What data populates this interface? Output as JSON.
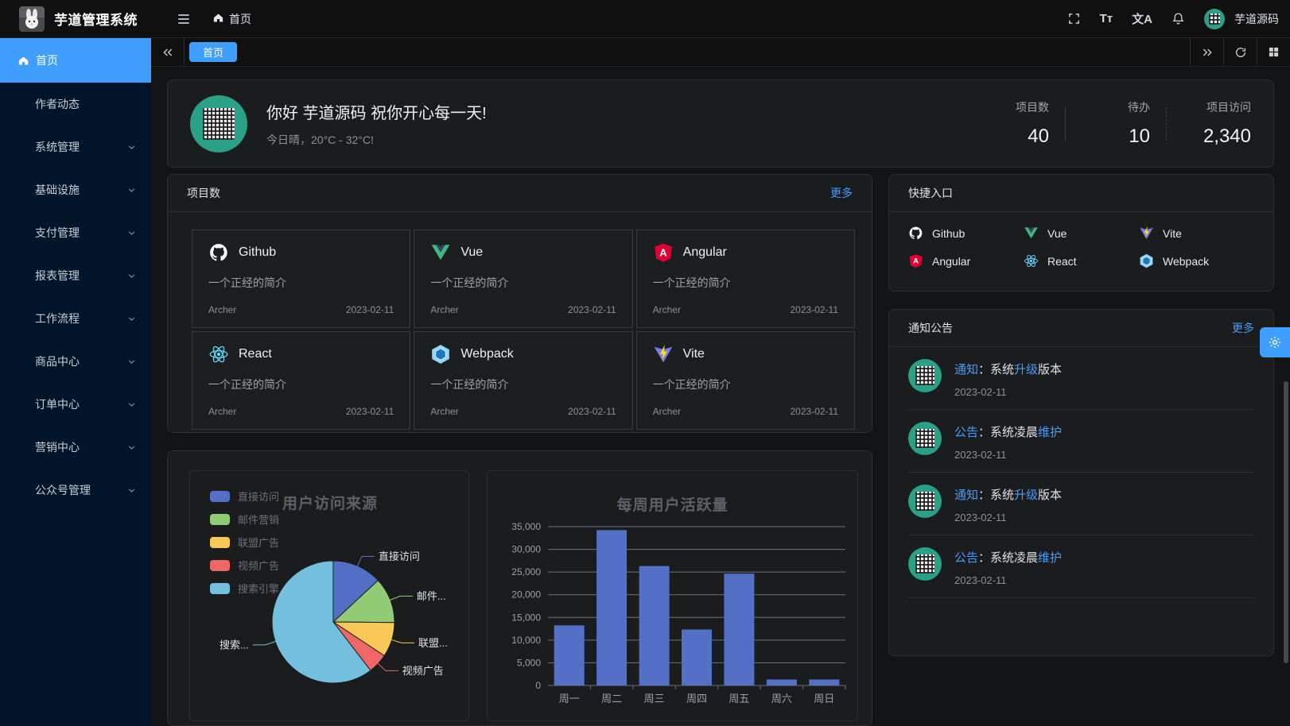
{
  "header": {
    "app_title": "芋道管理系统",
    "breadcrumb_home": "首页",
    "username": "芋道源码",
    "icons": [
      "fullscreen-icon",
      "font-size-icon",
      "locale-icon",
      "bell-icon"
    ]
  },
  "tabbar": {
    "active_tab": "首页"
  },
  "sidebar": {
    "items": [
      {
        "label": "首页",
        "active": true,
        "icon": "home-icon",
        "expandable": false
      },
      {
        "label": "作者动态",
        "active": false,
        "expandable": false
      },
      {
        "label": "系统管理",
        "active": false,
        "expandable": true
      },
      {
        "label": "基础设施",
        "active": false,
        "expandable": true
      },
      {
        "label": "支付管理",
        "active": false,
        "expandable": true
      },
      {
        "label": "报表管理",
        "active": false,
        "expandable": true
      },
      {
        "label": "工作流程",
        "active": false,
        "expandable": true
      },
      {
        "label": "商品中心",
        "active": false,
        "expandable": true
      },
      {
        "label": "订单中心",
        "active": false,
        "expandable": true
      },
      {
        "label": "营销中心",
        "active": false,
        "expandable": true
      },
      {
        "label": "公众号管理",
        "active": false,
        "expandable": true
      }
    ]
  },
  "greeting": {
    "title": "你好 芋道源码 祝你开心每一天!",
    "subtitle": "今日晴，20°C - 32°C!",
    "stats": [
      {
        "label": "项目数",
        "value": "40"
      },
      {
        "label": "待办",
        "value": "10"
      },
      {
        "label": "项目访问",
        "value": "2,340"
      }
    ]
  },
  "projects": {
    "title": "项目数",
    "more": "更多",
    "cards": [
      {
        "name": "Github",
        "icon": "github-icon",
        "desc": "一个正经的简介",
        "author": "Archer",
        "date": "2023-02-11"
      },
      {
        "name": "Vue",
        "icon": "vue-icon",
        "desc": "一个正经的简介",
        "author": "Archer",
        "date": "2023-02-11"
      },
      {
        "name": "Angular",
        "icon": "angular-icon",
        "desc": "一个正经的简介",
        "author": "Archer",
        "date": "2023-02-11"
      },
      {
        "name": "React",
        "icon": "react-icon",
        "desc": "一个正经的简介",
        "author": "Archer",
        "date": "2023-02-11"
      },
      {
        "name": "Webpack",
        "icon": "webpack-icon",
        "desc": "一个正经的简介",
        "author": "Archer",
        "date": "2023-02-11"
      },
      {
        "name": "Vite",
        "icon": "vite-icon",
        "desc": "一个正经的简介",
        "author": "Archer",
        "date": "2023-02-11"
      }
    ]
  },
  "shortcuts": {
    "title": "快捷入口",
    "items": [
      {
        "name": "Github",
        "icon": "github-icon"
      },
      {
        "name": "Vue",
        "icon": "vue-icon"
      },
      {
        "name": "Vite",
        "icon": "vite-icon"
      },
      {
        "name": "Angular",
        "icon": "angular-icon"
      },
      {
        "name": "React",
        "icon": "react-icon"
      },
      {
        "name": "Webpack",
        "icon": "webpack-icon"
      }
    ]
  },
  "notices": {
    "title": "通知公告",
    "more": "更多",
    "items": [
      {
        "segments": [
          {
            "text": "通知",
            "highlight": true
          },
          {
            "text": "：系统",
            "highlight": false
          },
          {
            "text": "升级",
            "highlight": true
          },
          {
            "text": "版本",
            "highlight": false
          }
        ],
        "date": "2023-02-11"
      },
      {
        "segments": [
          {
            "text": "公告",
            "highlight": true
          },
          {
            "text": "：系统凌晨",
            "highlight": false
          },
          {
            "text": "维护",
            "highlight": true
          }
        ],
        "date": "2023-02-11"
      },
      {
        "segments": [
          {
            "text": "通知",
            "highlight": true
          },
          {
            "text": "：系统",
            "highlight": false
          },
          {
            "text": "升级",
            "highlight": true
          },
          {
            "text": "版本",
            "highlight": false
          }
        ],
        "date": "2023-02-11"
      },
      {
        "segments": [
          {
            "text": "公告",
            "highlight": true
          },
          {
            "text": "：系统凌晨",
            "highlight": false
          },
          {
            "text": "维护",
            "highlight": true
          }
        ],
        "date": "2023-02-11"
      }
    ]
  },
  "colors": {
    "accent": "#409eff",
    "sidebar_bg": "#001529",
    "panel_bg": "#1b1c1e"
  },
  "chart_data": [
    {
      "type": "pie",
      "title": "用户访问来源",
      "legend_position": "top-left",
      "series": [
        {
          "name": "直接访问",
          "value": 335,
          "color": "#5470c6",
          "label": "直接访问"
        },
        {
          "name": "邮件营销",
          "value": 310,
          "color": "#91cc75",
          "label": "邮件..."
        },
        {
          "name": "联盟广告",
          "value": 234,
          "color": "#fac858",
          "label": "联盟..."
        },
        {
          "name": "视频广告",
          "value": 135,
          "color": "#ee6666",
          "label": "视频广告"
        },
        {
          "name": "搜索引擎",
          "value": 1548,
          "color": "#73c0de",
          "label": "搜索..."
        }
      ]
    },
    {
      "type": "bar",
      "title": "每周用户活跃量",
      "categories": [
        "周一",
        "周二",
        "周三",
        "周四",
        "周五",
        "周六",
        "周日"
      ],
      "values": [
        13253,
        34235,
        26321,
        12340,
        24643,
        1322,
        1324
      ],
      "xlabel": "",
      "ylabel": "",
      "ylim": [
        0,
        35000
      ],
      "ytick_step": 5000,
      "bar_color": "#5470c6",
      "grid": true
    }
  ]
}
